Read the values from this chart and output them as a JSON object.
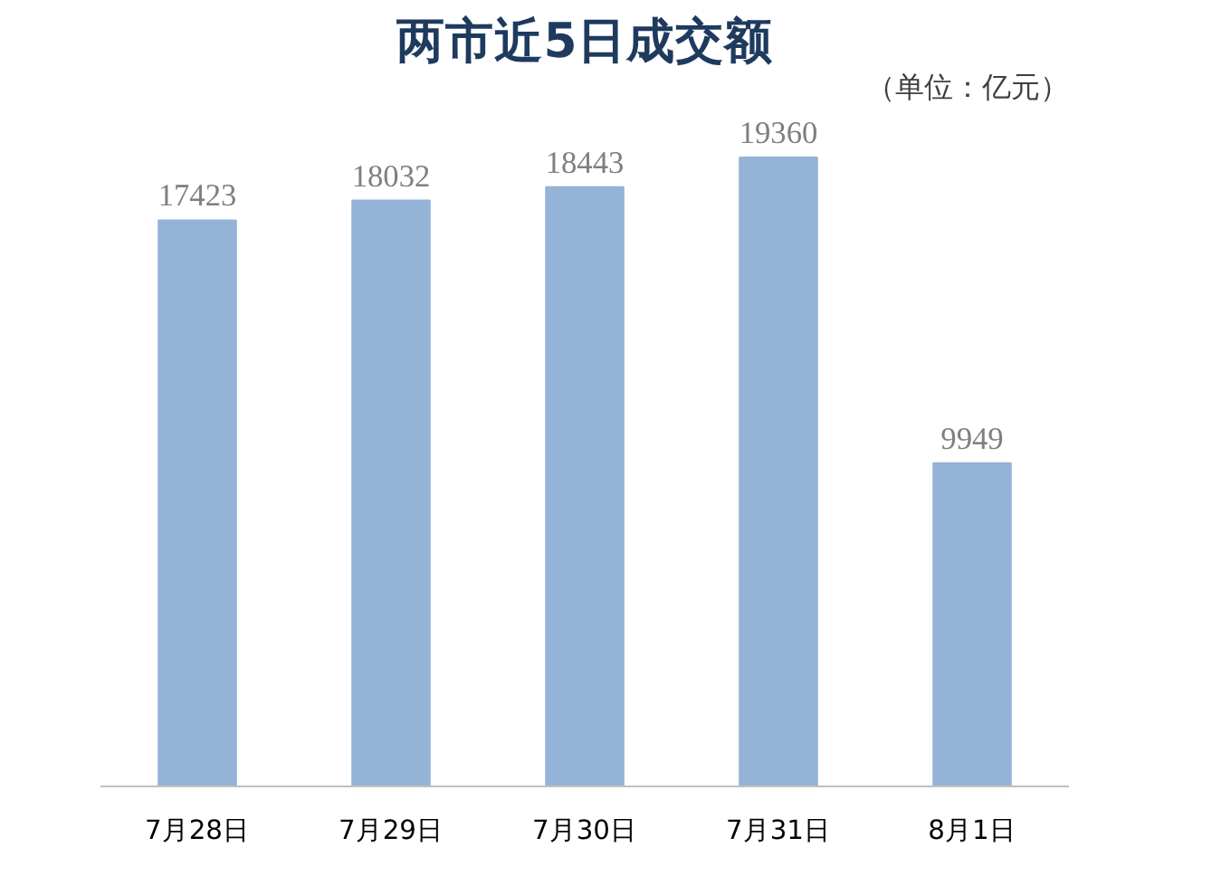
{
  "chart_data": {
    "type": "bar",
    "title": "两市近5日成交额",
    "annotations": [
      "（单位：亿元）"
    ],
    "categories": [
      "7月28日",
      "7月29日",
      "7月30日",
      "7月31日",
      "8月1日"
    ],
    "values": [
      17423,
      18032,
      18443,
      19360,
      9949
    ],
    "color": "#95b3d7",
    "data_labels": true,
    "grid": false
  }
}
